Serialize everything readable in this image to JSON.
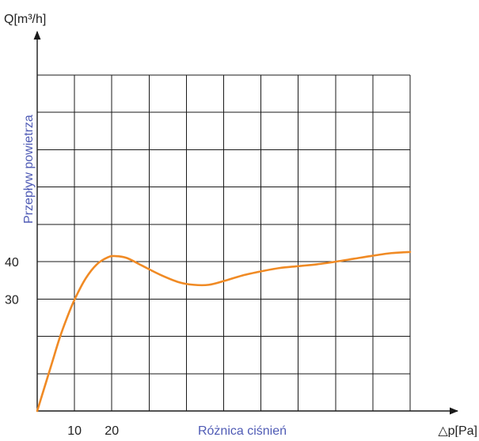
{
  "chart_data": {
    "type": "line",
    "title": "",
    "ylabel": "Przepływ powietrza",
    "xlabel": "Różnica ciśnień",
    "y_unit_label": "Q[m³/h]",
    "x_unit_label": "△p[Pa]",
    "x_ticks": [
      10,
      20
    ],
    "y_ticks": [
      30,
      40
    ],
    "xlim": [
      0,
      100
    ],
    "ylim": [
      0,
      90
    ],
    "grid": true,
    "series": [
      {
        "color": "#f08a24",
        "x": [
          0,
          2,
          4,
          6,
          8,
          10,
          13,
          16,
          19,
          21,
          24,
          28,
          33,
          38,
          42,
          46,
          50,
          55,
          60,
          65,
          70,
          75,
          80,
          85,
          90,
          95,
          100
        ],
        "y": [
          0,
          6.5,
          13,
          19.5,
          25,
          29.8,
          35.5,
          39.3,
          41.2,
          41.5,
          41,
          39,
          36.5,
          34.5,
          33.8,
          33.8,
          34.8,
          36.3,
          37.4,
          38.3,
          38.8,
          39.3,
          40,
          40.8,
          41.6,
          42.3,
          42.6
        ]
      }
    ],
    "colors": {
      "curve": "#f08a24",
      "grid": "#1a1a1a",
      "axis_name": "#4f5bb5",
      "ticks": "#222222"
    }
  }
}
